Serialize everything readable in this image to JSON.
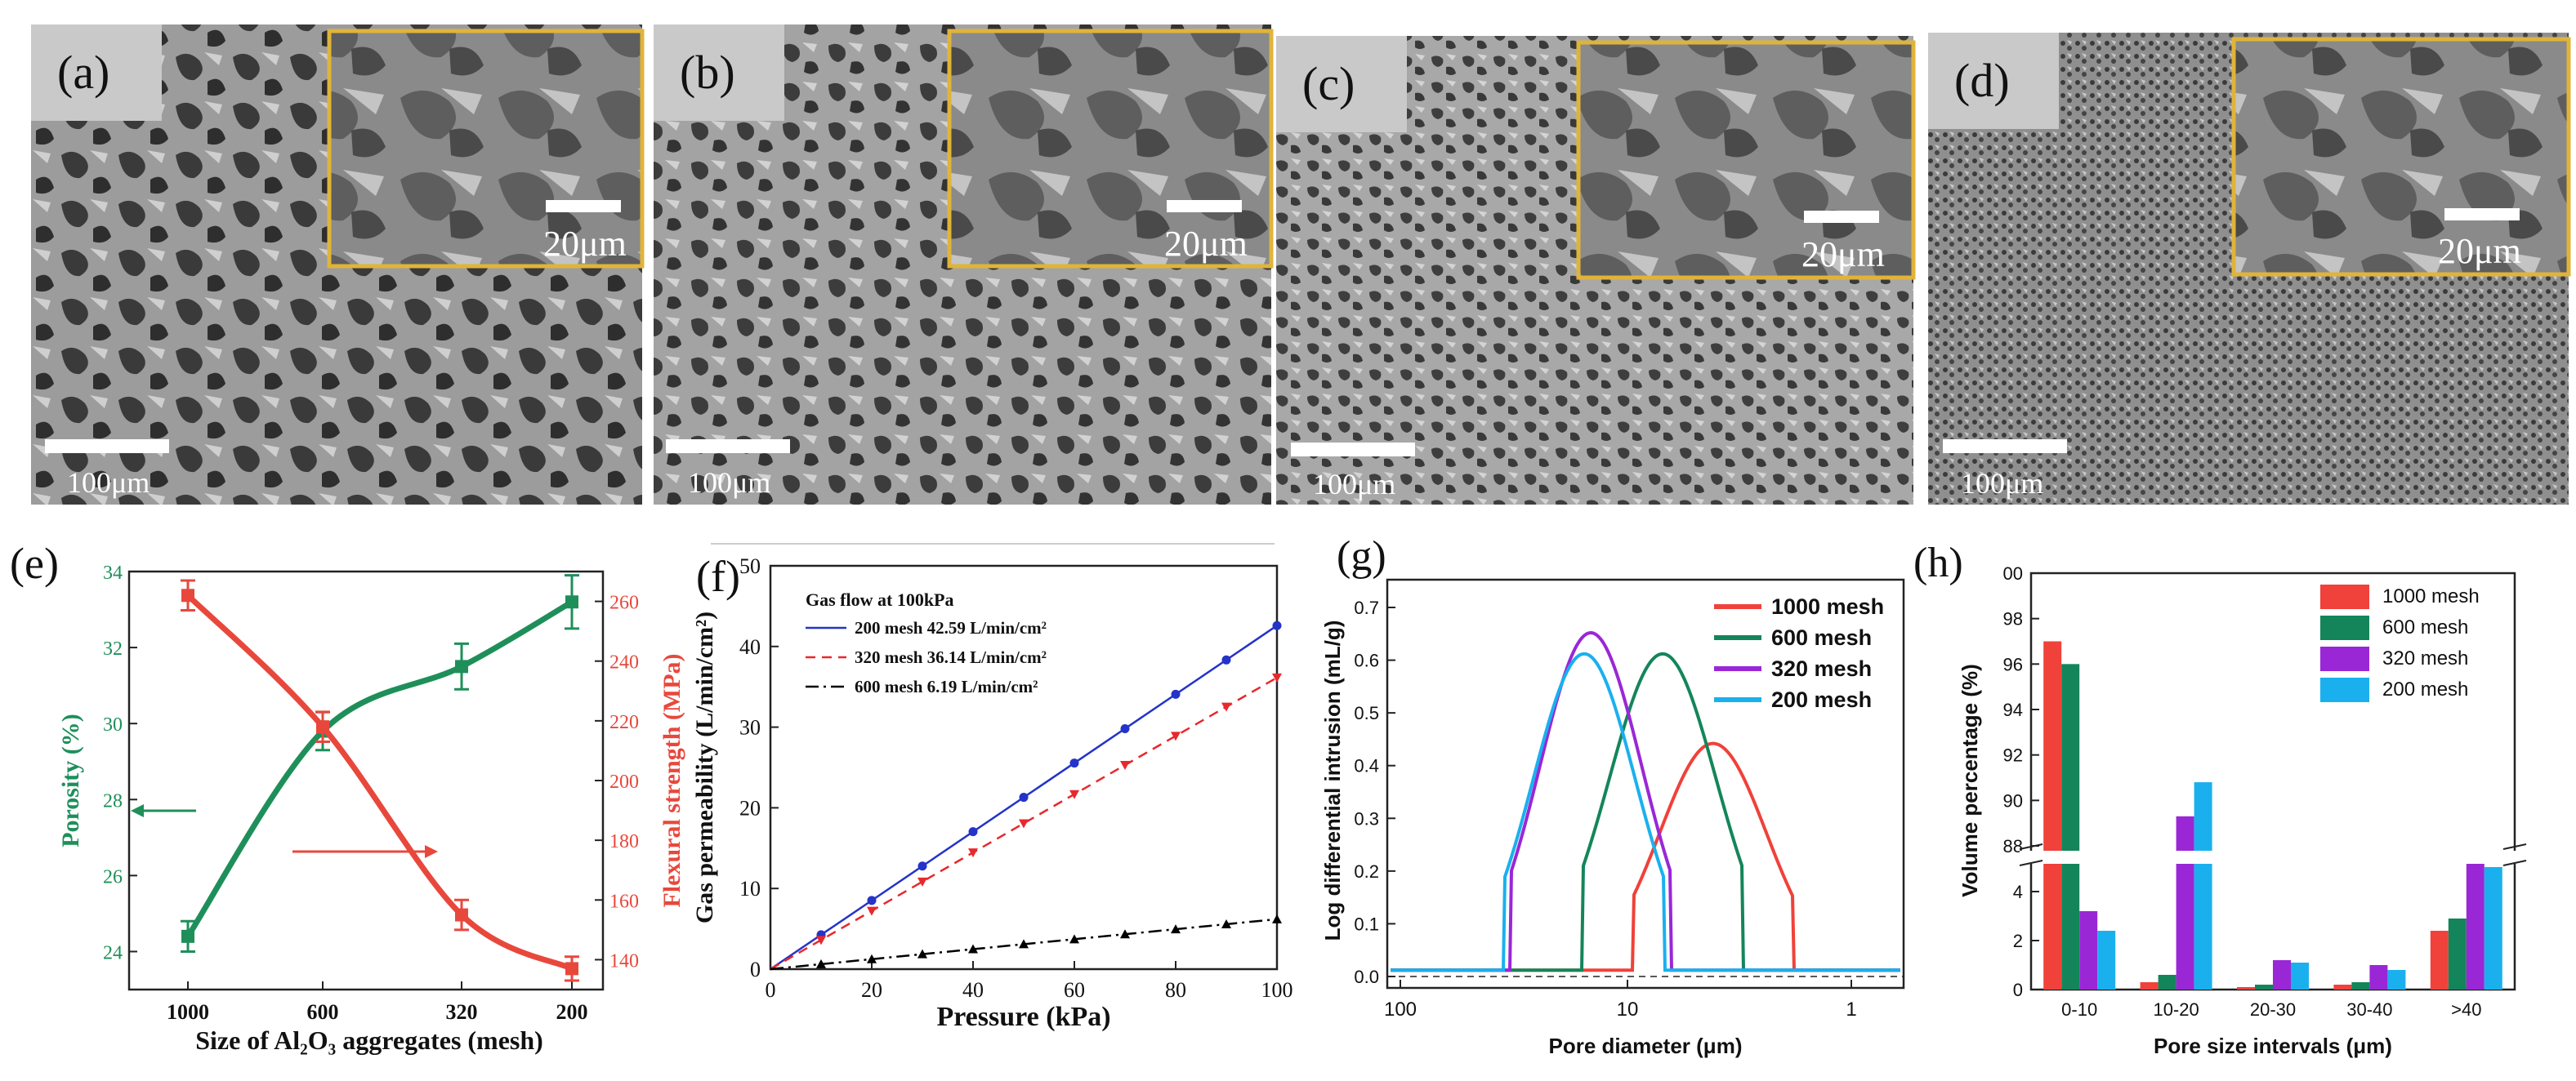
{
  "panels": {
    "a": {
      "label": "(a)",
      "inset_scale": "20μm",
      "main_scale": "100μm"
    },
    "b": {
      "label": "(b)",
      "inset_scale": "20μm",
      "main_scale": "100μm"
    },
    "c": {
      "label": "(c)",
      "inset_scale": "20μm",
      "main_scale": "100μm"
    },
    "d": {
      "label": "(d)",
      "inset_scale": "20μm",
      "main_scale": "100μm"
    }
  },
  "colors": {
    "inset_border": "#e0b43a",
    "green": "#1f8f5a",
    "red": "#e8483c",
    "blue": "#2433c8",
    "red_dashed": "#e8282c",
    "black": "#000000",
    "bar_1000": "#f0413a",
    "bar_600": "#14855a",
    "bar_320": "#9a27d6",
    "bar_200": "#1ab0ee"
  },
  "chart_data": [
    {
      "id": "e",
      "panel_label": "(e)",
      "type": "line",
      "categories": [
        "1000",
        "600",
        "320",
        "200"
      ],
      "xlabel": "Size of Al₂O₃ aggregates (mesh)",
      "ylabel_left": "Porosity (%)",
      "ylabel_right": "Flexural strength (MPa)",
      "ylim_left": [
        23,
        34
      ],
      "yticks_left": [
        24,
        26,
        28,
        30,
        32,
        34
      ],
      "ylim_right": [
        130,
        270
      ],
      "yticks_right": [
        140,
        160,
        180,
        200,
        220,
        240,
        260
      ],
      "series": [
        {
          "axis": "left",
          "values": [
            24.4,
            29.8,
            31.5,
            33.2
          ],
          "errors": [
            0.4,
            0.5,
            0.6,
            0.7
          ]
        },
        {
          "axis": "right",
          "values": [
            262,
            218,
            155,
            137
          ],
          "errors": [
            5,
            5,
            5,
            4
          ]
        }
      ]
    },
    {
      "id": "f",
      "panel_label": "(f)",
      "type": "line",
      "title": "Gas flow at 100kPa",
      "xlabel": "Pressure (kPa)",
      "ylabel": "Gas permeability (L/min/cm²)",
      "xlim": [
        0,
        100
      ],
      "ylim": [
        0,
        50
      ],
      "xticks": [
        0,
        20,
        40,
        60,
        80,
        100
      ],
      "yticks": [
        0,
        10,
        20,
        30,
        40,
        50
      ],
      "x": [
        0,
        10,
        20,
        30,
        40,
        50,
        60,
        70,
        80,
        90,
        100
      ],
      "series": [
        {
          "name": "200 mesh  42.59 L/min/cm²",
          "style": "solid",
          "values": [
            0,
            4.26,
            8.52,
            12.78,
            17.04,
            21.3,
            25.55,
            29.81,
            34.07,
            38.33,
            42.59
          ]
        },
        {
          "name": "320 mesh  36.14 L/min/cm²",
          "style": "dashed",
          "values": [
            0,
            3.61,
            7.23,
            10.84,
            14.46,
            18.07,
            21.68,
            25.3,
            28.91,
            32.53,
            36.14
          ]
        },
        {
          "name": "600 mesh  6.19 L/min/cm²",
          "style": "dashdot",
          "values": [
            0,
            0.62,
            1.24,
            1.86,
            2.48,
            3.1,
            3.71,
            4.33,
            4.95,
            5.57,
            6.19
          ]
        }
      ]
    },
    {
      "id": "g",
      "panel_label": "(g)",
      "type": "line",
      "xlabel": "Pore diameter (μm)",
      "ylabel": "Log differential intrusion (mL/g)",
      "x_scale": "log-reversed",
      "xticks": [
        "100",
        "10",
        "1"
      ],
      "yticks": [
        "0.0",
        "0.1",
        "0.2",
        "0.3",
        "0.4",
        "0.5",
        "0.6",
        "0.7"
      ],
      "ylim": [
        0,
        0.7
      ],
      "series": [
        {
          "name": "1000 mesh",
          "peak_diameter_um": 4.2,
          "peak": 0.43
        },
        {
          "name": "600 mesh",
          "peak_diameter_um": 7.0,
          "peak": 0.6
        },
        {
          "name": "320 mesh",
          "peak_diameter_um": 14.5,
          "peak": 0.64
        },
        {
          "name": "200 mesh",
          "peak_diameter_um": 15.5,
          "peak": 0.6
        }
      ]
    },
    {
      "id": "h",
      "panel_label": "(h)",
      "type": "bar",
      "xlabel": "Pore size intervals (μm)",
      "ylabel": "Volume percentage (%)",
      "categories": [
        "0-10",
        "10-20",
        "20-30",
        "30-40",
        ">40"
      ],
      "yticks_lower": [
        "0",
        "2",
        "4"
      ],
      "yticks_upper": [
        "88",
        "90",
        "92",
        "94",
        "96",
        "98",
        "00"
      ],
      "series": [
        {
          "name": "1000 mesh",
          "values": [
            97.0,
            0.3,
            0.1,
            0.2,
            2.4
          ]
        },
        {
          "name": "600 mesh",
          "values": [
            96.0,
            0.6,
            0.2,
            0.3,
            2.9
          ]
        },
        {
          "name": "320 mesh",
          "values": [
            3.2,
            89.3,
            1.2,
            1.0,
            5.3
          ]
        },
        {
          "name": "200 mesh",
          "values": [
            2.4,
            90.8,
            1.1,
            0.8,
            5.0
          ]
        }
      ]
    }
  ]
}
